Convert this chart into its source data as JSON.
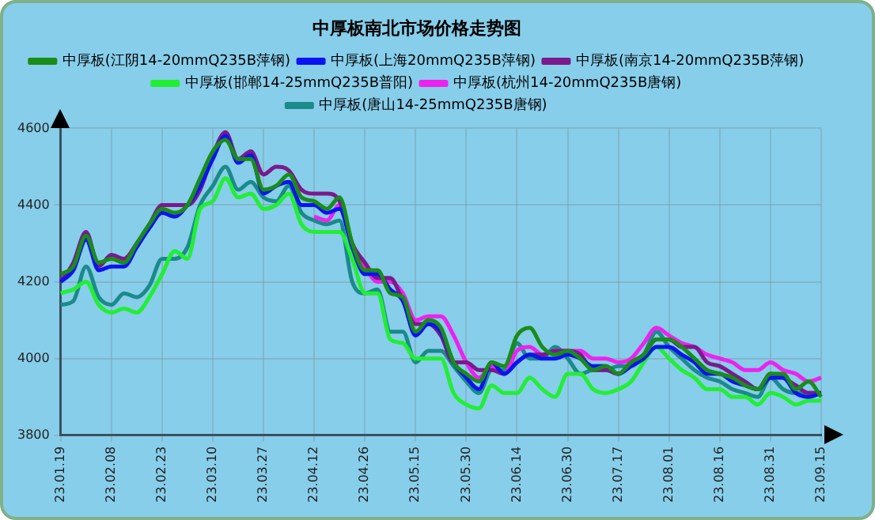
{
  "chart_data": {
    "type": "line",
    "title": "中厚板南北市场价格走势图",
    "categories": [
      "23.01.19",
      null,
      null,
      null,
      "23.02.08",
      null,
      null,
      null,
      "23.02.23",
      null,
      null,
      null,
      "23.03.10",
      null,
      null,
      null,
      "23.03.27",
      null,
      null,
      null,
      "23.04.12",
      null,
      null,
      null,
      "23.04.26",
      null,
      null,
      null,
      "23.05.15",
      null,
      null,
      null,
      "23.05.30",
      null,
      null,
      null,
      "23.06.14",
      null,
      null,
      null,
      "23.06.30",
      null,
      null,
      null,
      "23.07.17",
      null,
      null,
      null,
      "23.08.01",
      null,
      null,
      null,
      "23.08.16",
      null,
      null,
      null,
      "23.08.31",
      null,
      null,
      null,
      "23.09.15"
    ],
    "ylim": [
      3800,
      4600
    ],
    "yticks": [
      3800,
      4000,
      4200,
      4400,
      4600
    ],
    "grid": true,
    "legend": "top",
    "marker": "none",
    "line_style": "solid",
    "series": [
      {
        "name": "中厚板(江阴14-20mmQ235B萍钢)",
        "color": "#1a8c1a",
        "values": [
          4220,
          4240,
          4320,
          4250,
          4260,
          4250,
          4300,
          4350,
          4390,
          4380,
          4400,
          4470,
          4540,
          4570,
          4520,
          4520,
          4440,
          4450,
          4480,
          4420,
          4410,
          4390,
          4420,
          4300,
          4230,
          4230,
          4170,
          4160,
          4070,
          4100,
          4080,
          3990,
          3960,
          3940,
          3990,
          3980,
          4060,
          4080,
          4030,
          4010,
          4020,
          4000,
          3970,
          3980,
          3960,
          3990,
          4010,
          4050,
          4050,
          4030,
          4000,
          3970,
          3960,
          3950,
          3930,
          3920,
          3960,
          3960,
          3920,
          3940,
          3900
        ]
      },
      {
        "name": "中厚板(上海20mmQ235B萍钢)",
        "color": "#0a14f0",
        "values": [
          4200,
          4230,
          4310,
          4230,
          4240,
          4240,
          4290,
          4340,
          4380,
          4370,
          4400,
          4450,
          4520,
          4580,
          4510,
          4530,
          4430,
          4450,
          4460,
          4400,
          4400,
          4380,
          4390,
          4290,
          4220,
          4220,
          4180,
          4150,
          4060,
          4090,
          4070,
          3990,
          3950,
          3920,
          3990,
          3960,
          3990,
          4010,
          4000,
          4000,
          4010,
          4000,
          3980,
          3980,
          3960,
          3980,
          4000,
          4030,
          4030,
          4010,
          3990,
          3960,
          3960,
          3940,
          3930,
          3920,
          3950,
          3950,
          3910,
          3900,
          3910
        ]
      },
      {
        "name": "中厚板(南京14-20mmQ235B萍钢)",
        "color": "#7a1a8c",
        "values": [
          4200,
          4250,
          4330,
          4240,
          4270,
          4260,
          4300,
          4350,
          4400,
          4400,
          4400,
          4440,
          4530,
          4590,
          4520,
          4540,
          4480,
          4500,
          4490,
          4440,
          4430,
          4430,
          4410,
          4300,
          4250,
          4210,
          4210,
          4150,
          4090,
          4090,
          4060,
          3990,
          3990,
          3970,
          3970,
          3960,
          3990,
          4010,
          4010,
          4020,
          4020,
          4010,
          3970,
          3970,
          3960,
          3990,
          4010,
          4050,
          4050,
          4030,
          4030,
          3990,
          3980,
          3960,
          3940,
          3920,
          3960,
          3950,
          3930,
          3910,
          3910
        ]
      },
      {
        "name": "中厚板(邯郸14-25mmQ235B普阳)",
        "color": "#22ee33",
        "values": [
          4170,
          4180,
          4200,
          4140,
          4120,
          4130,
          4120,
          4160,
          4220,
          4280,
          4260,
          4390,
          4410,
          4470,
          4420,
          4430,
          4390,
          4400,
          4430,
          4350,
          4330,
          4330,
          4330,
          4260,
          4170,
          4170,
          4050,
          4040,
          4000,
          4000,
          4000,
          3910,
          3880,
          3870,
          3930,
          3910,
          3910,
          3950,
          3920,
          3900,
          3960,
          3960,
          3920,
          3910,
          3920,
          3940,
          3990,
          4030,
          4000,
          3970,
          3950,
          3920,
          3920,
          3900,
          3900,
          3880,
          3910,
          3900,
          3880,
          3890,
          3890
        ]
      },
      {
        "name": "中厚板(杭州14-20mmQ235B唐钢)",
        "color": "#ee22ee",
        "values": [
          null,
          null,
          null,
          null,
          null,
          null,
          null,
          null,
          null,
          null,
          null,
          null,
          null,
          null,
          null,
          null,
          null,
          null,
          null,
          null,
          4370,
          4360,
          4400,
          4300,
          4240,
          4200,
          4200,
          4170,
          4100,
          4110,
          4110,
          4060,
          3990,
          3950,
          3980,
          3960,
          4020,
          4030,
          4010,
          4020,
          4020,
          4020,
          4000,
          4000,
          3990,
          4000,
          4040,
          4080,
          4060,
          4040,
          4030,
          4010,
          4000,
          3990,
          3970,
          3970,
          3990,
          3970,
          3960,
          3940,
          3950
        ]
      },
      {
        "name": "中厚板(唐山14-25mmQ235B唐钢)",
        "color": "#1a8a8a",
        "values": [
          4140,
          4150,
          4240,
          4160,
          4140,
          4170,
          4160,
          4190,
          4260,
          4260,
          4290,
          4400,
          4450,
          4500,
          4440,
          4460,
          4420,
          4410,
          4450,
          4380,
          4360,
          4350,
          4360,
          4200,
          4170,
          4180,
          4070,
          4070,
          3990,
          4020,
          4020,
          3980,
          3940,
          3910,
          3970,
          3970,
          4040,
          4000,
          4000,
          4030,
          4000,
          3960,
          3970,
          3970,
          3980,
          3980,
          4010,
          4070,
          4030,
          4000,
          3970,
          3950,
          3940,
          3920,
          3910,
          3900,
          3950,
          3920,
          3910,
          3910,
          3910
        ]
      }
    ]
  }
}
